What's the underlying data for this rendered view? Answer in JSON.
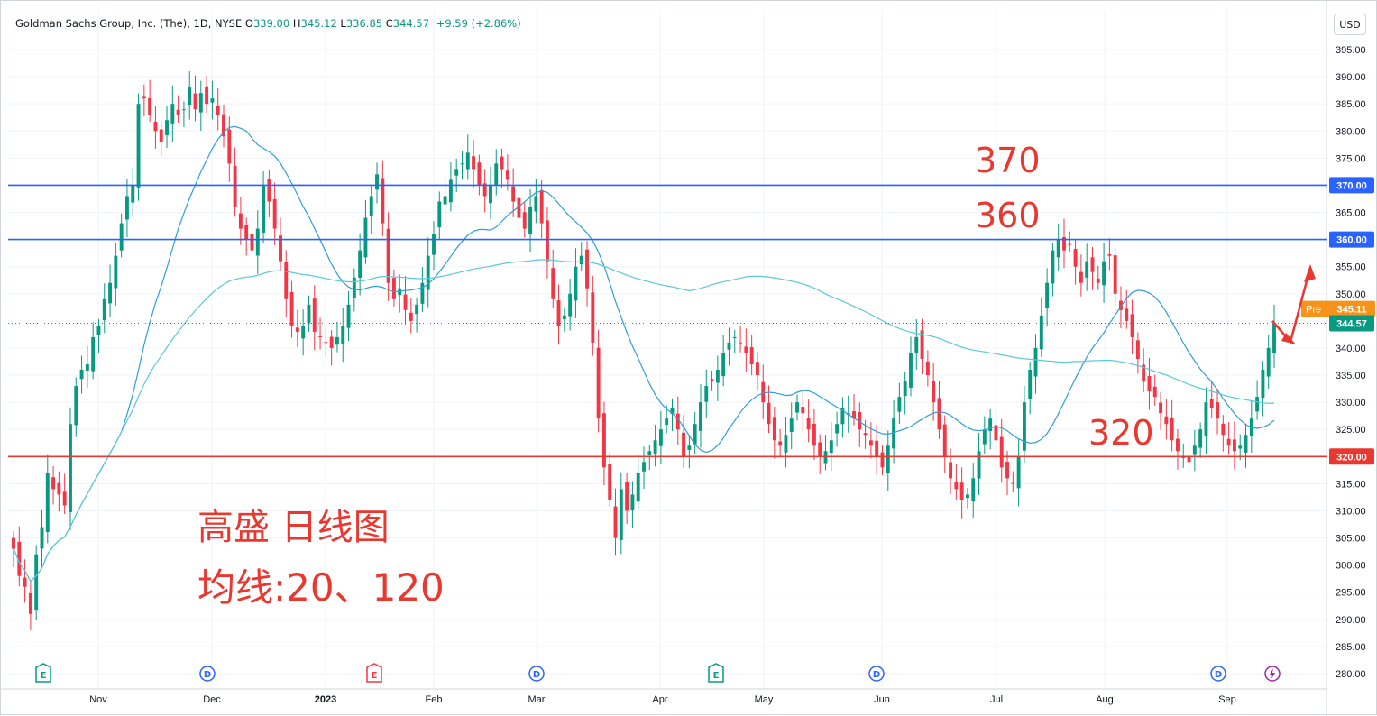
{
  "header": {
    "symbol_name": "Goldman Sachs Group, Inc. (The), 1D, NYSE",
    "open_label": "O",
    "open": "339.00",
    "high_label": "H",
    "high": "345.12",
    "low_label": "L",
    "low": "336.85",
    "close_label": "C",
    "close": "344.57",
    "change": "+9.59 (+2.86%)",
    "currency": "USD"
  },
  "annotations": {
    "level_370": "370",
    "level_360": "360",
    "level_320": "320",
    "title_cn": "高盛 日线图",
    "ma_cn": "均线:20、120"
  },
  "colors": {
    "up": "#089981",
    "down": "#f23645",
    "ma_line": "#2f9ed8",
    "ma_long": "#5bc8d8",
    "hline_blue": "#2962ff",
    "hline_red": "#e8382f",
    "annotation": "#e8382f",
    "pre_tag": "#f7931a"
  },
  "chart_data": {
    "type": "candlestick",
    "ylim": [
      277,
      398
    ],
    "y_ticks": [
      "395.00",
      "390.00",
      "385.00",
      "380.00",
      "375.00",
      "370.00",
      "365.00",
      "360.00",
      "355.00",
      "350.00",
      "345.00",
      "340.00",
      "335.00",
      "330.00",
      "325.00",
      "320.00",
      "315.00",
      "310.00",
      "305.00",
      "300.00",
      "295.00",
      "290.00",
      "285.00",
      "280.00"
    ],
    "x_labels": [
      "Nov",
      "Dec",
      "2023",
      "Feb",
      "Mar",
      "Apr",
      "May",
      "Jun",
      "Jul",
      "Aug",
      "Sep"
    ],
    "events": [
      "E",
      "D",
      "E",
      "D",
      "E",
      "D",
      "D",
      "lightning"
    ],
    "hlines": [
      {
        "value": 370,
        "label": "370.00",
        "color": "blue"
      },
      {
        "value": 360,
        "label": "360.00",
        "color": "blue"
      },
      {
        "value": 320,
        "label": "320.00",
        "color": "red"
      }
    ],
    "price_tags": [
      {
        "label": "Pre",
        "value": "345.11"
      },
      {
        "value": "344.57"
      }
    ],
    "candles_close": [
      303,
      298,
      296,
      291,
      302,
      307,
      317,
      314,
      313,
      311,
      326,
      333,
      336,
      337,
      342,
      344,
      349,
      352,
      357,
      363,
      368,
      370,
      385,
      386,
      383,
      380,
      378,
      382,
      385,
      383,
      384,
      388,
      384,
      387,
      385,
      386,
      383,
      379,
      374,
      366,
      362,
      360,
      358,
      362,
      370,
      367,
      362,
      356,
      349,
      344,
      343,
      344,
      348,
      343,
      342,
      341,
      340,
      342,
      344,
      348,
      353,
      358,
      364,
      368,
      372,
      363,
      352,
      349,
      351,
      347,
      345,
      348,
      352,
      357,
      361,
      367,
      368,
      371,
      373,
      374,
      376,
      373,
      370,
      368,
      370,
      374,
      373,
      371,
      367,
      364,
      362,
      366,
      368,
      363,
      356,
      349,
      344,
      346,
      350,
      355,
      357,
      351,
      341,
      327,
      318,
      312,
      305,
      314,
      310,
      313,
      317,
      319,
      321,
      323,
      325,
      327,
      329,
      325,
      320,
      322,
      326,
      330,
      333,
      334,
      336,
      339,
      341,
      342,
      341,
      339,
      337,
      335,
      330,
      326,
      323,
      322,
      324,
      327,
      330,
      328,
      325,
      322,
      320,
      321,
      323,
      326,
      329,
      328,
      327,
      325,
      324,
      322,
      320,
      318,
      322,
      327,
      331,
      334,
      339,
      342,
      338,
      335,
      330,
      325,
      320,
      316,
      314,
      312,
      313,
      316,
      321,
      325,
      327,
      323,
      318,
      316,
      315,
      320,
      330,
      336,
      340,
      346,
      352,
      358,
      360,
      358,
      359,
      355,
      352,
      356,
      354,
      352,
      356,
      357,
      350,
      347,
      345,
      342,
      338,
      334,
      332,
      331,
      328,
      326,
      323,
      321,
      320,
      319,
      322,
      325,
      330,
      329,
      327,
      324,
      322,
      321,
      322,
      324,
      327,
      331,
      336,
      340,
      344.57
    ]
  }
}
